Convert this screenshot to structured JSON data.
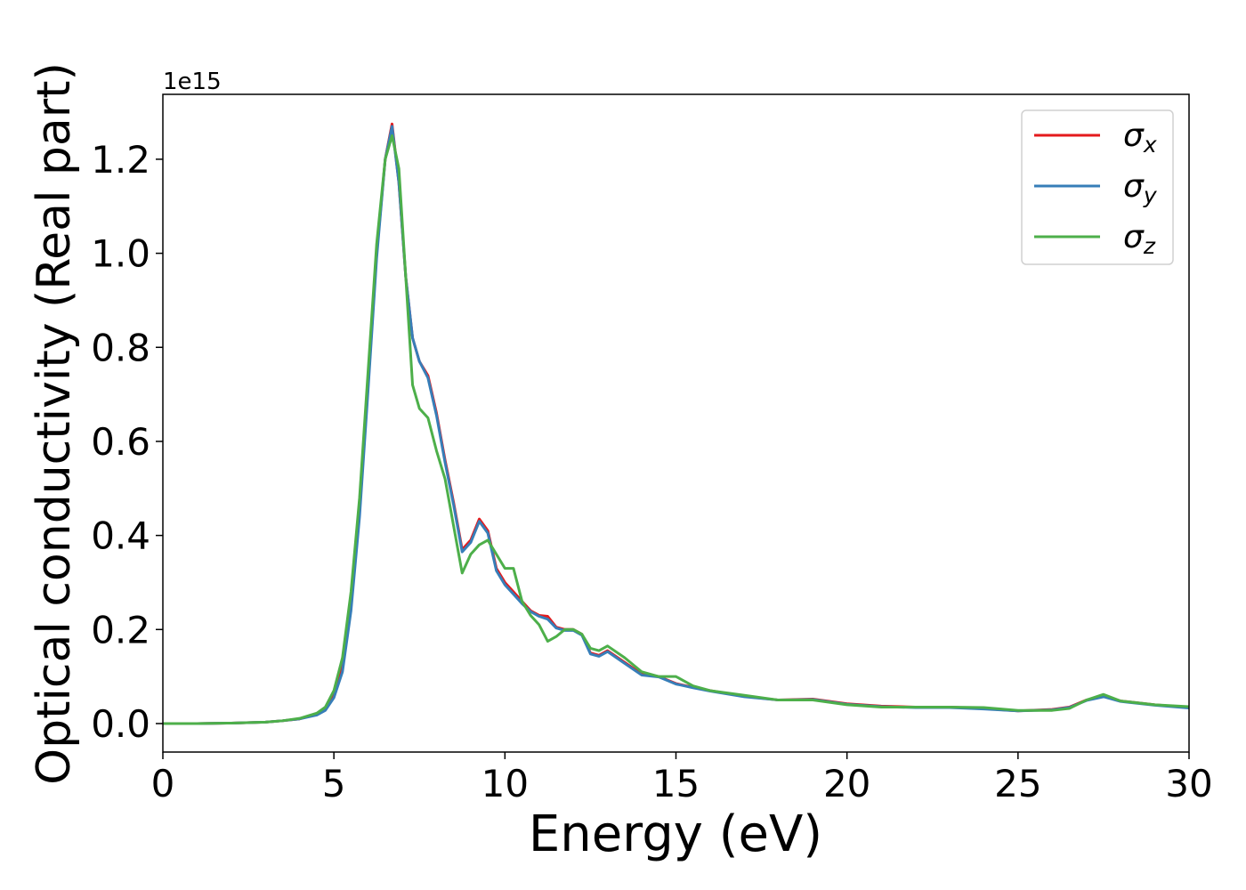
{
  "chart_data": {
    "type": "line",
    "xlabel": "Energy (eV)",
    "ylabel": "Optical conductivity (Real part)",
    "offset_label": "1e15",
    "xlim": [
      0,
      30
    ],
    "ylim": [
      -0.0606,
      1.338
    ],
    "xticks": [
      0,
      5,
      10,
      15,
      20,
      25,
      30
    ],
    "yticks": [
      {
        "value": 0,
        "label": "0.0"
      },
      0.2,
      0.4,
      0.6,
      0.8,
      {
        "value": 1,
        "label": "1.0"
      },
      1.2
    ],
    "legend": "upper right",
    "x": [
      0,
      1,
      2,
      3,
      3.5,
      4,
      4.5,
      4.75,
      5,
      5.25,
      5.5,
      5.75,
      6,
      6.25,
      6.5,
      6.7,
      6.9,
      7.1,
      7.3,
      7.5,
      7.75,
      8,
      8.25,
      8.5,
      8.75,
      9,
      9.25,
      9.5,
      9.75,
      10,
      10.25,
      10.5,
      10.75,
      11,
      11.25,
      11.5,
      11.75,
      12,
      12.25,
      12.5,
      12.75,
      13,
      13.5,
      14,
      14.5,
      15,
      15.5,
      16,
      17,
      18,
      19,
      20,
      21,
      22,
      23,
      24,
      25,
      26,
      26.5,
      27,
      27.5,
      28,
      29,
      30
    ],
    "series": [
      {
        "name": "σx",
        "color": "#e41a1c",
        "values": [
          0,
          0,
          0.001,
          0.003,
          0.006,
          0.01,
          0.02,
          0.03,
          0.06,
          0.12,
          0.25,
          0.45,
          0.72,
          1.0,
          1.2,
          1.275,
          1.15,
          0.95,
          0.82,
          0.77,
          0.74,
          0.66,
          0.56,
          0.47,
          0.37,
          0.39,
          0.435,
          0.41,
          0.33,
          0.3,
          0.28,
          0.26,
          0.24,
          0.23,
          0.228,
          0.205,
          0.2,
          0.2,
          0.19,
          0.15,
          0.145,
          0.155,
          0.13,
          0.105,
          0.1,
          0.085,
          0.077,
          0.07,
          0.058,
          0.05,
          0.052,
          0.042,
          0.037,
          0.035,
          0.035,
          0.032,
          0.027,
          0.03,
          0.035,
          0.05,
          0.058,
          0.048,
          0.04,
          0.034
        ]
      },
      {
        "name": "σy",
        "color": "#377eb8",
        "values": [
          0,
          0,
          0.001,
          0.003,
          0.006,
          0.01,
          0.018,
          0.028,
          0.055,
          0.11,
          0.24,
          0.44,
          0.71,
          0.99,
          1.2,
          1.27,
          1.15,
          0.95,
          0.82,
          0.77,
          0.735,
          0.655,
          0.555,
          0.465,
          0.365,
          0.385,
          0.43,
          0.405,
          0.325,
          0.295,
          0.275,
          0.255,
          0.238,
          0.228,
          0.222,
          0.203,
          0.198,
          0.198,
          0.188,
          0.148,
          0.143,
          0.153,
          0.128,
          0.103,
          0.099,
          0.084,
          0.076,
          0.069,
          0.057,
          0.05,
          0.051,
          0.041,
          0.036,
          0.034,
          0.034,
          0.031,
          0.027,
          0.029,
          0.034,
          0.049,
          0.057,
          0.047,
          0.039,
          0.033
        ]
      },
      {
        "name": "σz",
        "color": "#4daf4a",
        "values": [
          0,
          0,
          0.001,
          0.003,
          0.006,
          0.011,
          0.022,
          0.035,
          0.07,
          0.14,
          0.28,
          0.48,
          0.75,
          1.02,
          1.2,
          1.25,
          1.18,
          0.95,
          0.72,
          0.67,
          0.65,
          0.58,
          0.52,
          0.42,
          0.32,
          0.36,
          0.38,
          0.39,
          0.36,
          0.33,
          0.33,
          0.26,
          0.23,
          0.21,
          0.175,
          0.185,
          0.2,
          0.2,
          0.19,
          0.16,
          0.155,
          0.165,
          0.14,
          0.11,
          0.1,
          0.1,
          0.08,
          0.07,
          0.06,
          0.05,
          0.05,
          0.04,
          0.035,
          0.035,
          0.035,
          0.034,
          0.028,
          0.028,
          0.032,
          0.05,
          0.062,
          0.048,
          0.04,
          0.036
        ]
      }
    ]
  }
}
